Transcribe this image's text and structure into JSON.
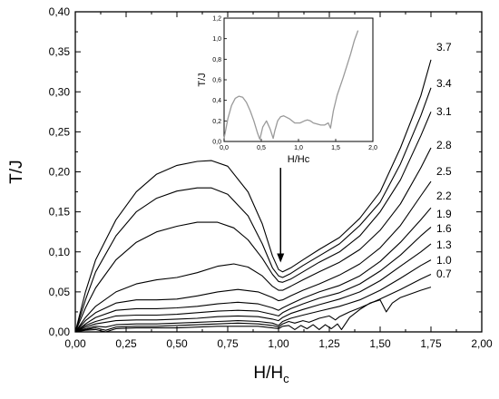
{
  "chart_data": [
    {
      "type": "line",
      "role": "main",
      "xlabel": "H/H",
      "xlabel_sub": "c",
      "ylabel": "T/J",
      "xlim": [
        0,
        2.0
      ],
      "ylim": [
        0,
        0.4
      ],
      "x_ticks": [
        "0,00",
        "0,25",
        "0,50",
        "0,75",
        "1,00",
        "1,25",
        "1,50",
        "1,75",
        "2,00"
      ],
      "y_ticks": [
        "0,00",
        "0,05",
        "0,10",
        "0,15",
        "0,20",
        "0,25",
        "0,30",
        "0,35",
        "0,40"
      ],
      "grid": false,
      "annotation": "downward arrow pointing at the minimum near H/Hc = 1",
      "series": [
        {
          "name": "3.7",
          "x": [
            0,
            0.05,
            0.1,
            0.2,
            0.3,
            0.4,
            0.5,
            0.6,
            0.67,
            0.75,
            0.85,
            0.92,
            0.97,
            1.0,
            1.02,
            1.06,
            1.12,
            1.2,
            1.3,
            1.4,
            1.5,
            1.6,
            1.7,
            1.75
          ],
          "y": [
            0,
            0.05,
            0.09,
            0.14,
            0.175,
            0.197,
            0.208,
            0.213,
            0.214,
            0.207,
            0.175,
            0.135,
            0.095,
            0.078,
            0.075,
            0.08,
            0.09,
            0.103,
            0.118,
            0.142,
            0.175,
            0.23,
            0.295,
            0.34
          ]
        },
        {
          "name": "3.4",
          "x": [
            0,
            0.05,
            0.1,
            0.2,
            0.3,
            0.4,
            0.5,
            0.6,
            0.67,
            0.75,
            0.85,
            0.92,
            0.97,
            1.0,
            1.02,
            1.06,
            1.12,
            1.2,
            1.3,
            1.4,
            1.5,
            1.6,
            1.7,
            1.75
          ],
          "y": [
            0,
            0.04,
            0.075,
            0.12,
            0.15,
            0.167,
            0.176,
            0.18,
            0.18,
            0.172,
            0.145,
            0.11,
            0.08,
            0.07,
            0.068,
            0.073,
            0.083,
            0.095,
            0.11,
            0.133,
            0.162,
            0.21,
            0.27,
            0.305
          ]
        },
        {
          "name": "3.1",
          "x": [
            0,
            0.05,
            0.1,
            0.2,
            0.3,
            0.4,
            0.5,
            0.6,
            0.7,
            0.78,
            0.85,
            0.92,
            0.97,
            1.0,
            1.02,
            1.06,
            1.12,
            1.2,
            1.3,
            1.4,
            1.5,
            1.6,
            1.7,
            1.75
          ],
          "y": [
            0,
            0.03,
            0.055,
            0.09,
            0.112,
            0.125,
            0.132,
            0.137,
            0.137,
            0.13,
            0.115,
            0.092,
            0.072,
            0.063,
            0.062,
            0.066,
            0.075,
            0.087,
            0.1,
            0.12,
            0.15,
            0.19,
            0.245,
            0.275
          ]
        },
        {
          "name": "2.8",
          "x": [
            0,
            0.05,
            0.1,
            0.2,
            0.3,
            0.4,
            0.5,
            0.6,
            0.7,
            0.78,
            0.85,
            0.92,
            0.97,
            1.0,
            1.02,
            1.06,
            1.12,
            1.2,
            1.3,
            1.4,
            1.5,
            1.6,
            1.7,
            1.75
          ],
          "y": [
            0,
            0.018,
            0.032,
            0.05,
            0.06,
            0.065,
            0.068,
            0.074,
            0.082,
            0.085,
            0.081,
            0.07,
            0.057,
            0.052,
            0.052,
            0.057,
            0.065,
            0.075,
            0.087,
            0.103,
            0.127,
            0.16,
            0.205,
            0.23
          ]
        },
        {
          "name": "2.5",
          "x": [
            0,
            0.05,
            0.1,
            0.2,
            0.3,
            0.4,
            0.5,
            0.6,
            0.7,
            0.8,
            0.9,
            0.97,
            1.0,
            1.02,
            1.06,
            1.12,
            1.2,
            1.3,
            1.4,
            1.5,
            1.6,
            1.7,
            1.75
          ],
          "y": [
            0,
            0.014,
            0.024,
            0.036,
            0.04,
            0.04,
            0.041,
            0.045,
            0.05,
            0.053,
            0.05,
            0.043,
            0.039,
            0.04,
            0.045,
            0.052,
            0.06,
            0.071,
            0.085,
            0.105,
            0.133,
            0.17,
            0.188
          ]
        },
        {
          "name": "2.2",
          "x": [
            0,
            0.05,
            0.1,
            0.2,
            0.3,
            0.4,
            0.5,
            0.6,
            0.7,
            0.8,
            0.9,
            0.97,
            1.0,
            1.02,
            1.06,
            1.12,
            1.2,
            1.3,
            1.4,
            1.5,
            1.6,
            1.7,
            1.75
          ],
          "y": [
            0,
            0.01,
            0.018,
            0.027,
            0.029,
            0.029,
            0.03,
            0.032,
            0.035,
            0.037,
            0.035,
            0.03,
            0.027,
            0.03,
            0.035,
            0.042,
            0.05,
            0.058,
            0.07,
            0.088,
            0.112,
            0.14,
            0.155
          ]
        },
        {
          "name": "1.9",
          "x": [
            0,
            0.05,
            0.1,
            0.2,
            0.3,
            0.4,
            0.5,
            0.6,
            0.7,
            0.8,
            0.9,
            0.97,
            1.0,
            1.02,
            1.06,
            1.12,
            1.2,
            1.3,
            1.4,
            1.5,
            1.6,
            1.7,
            1.75
          ],
          "y": [
            0,
            0.008,
            0.013,
            0.02,
            0.021,
            0.021,
            0.022,
            0.024,
            0.026,
            0.027,
            0.026,
            0.022,
            0.02,
            0.024,
            0.029,
            0.035,
            0.042,
            0.049,
            0.06,
            0.076,
            0.096,
            0.12,
            0.131
          ]
        },
        {
          "name": "1.6",
          "x": [
            0,
            0.05,
            0.1,
            0.2,
            0.3,
            0.4,
            0.5,
            0.6,
            0.7,
            0.8,
            0.9,
            0.97,
            1.0,
            1.02,
            1.06,
            1.12,
            1.2,
            1.3,
            1.4,
            1.5,
            1.6,
            1.7,
            1.75
          ],
          "y": [
            0,
            0.006,
            0.01,
            0.014,
            0.015,
            0.015,
            0.016,
            0.017,
            0.019,
            0.02,
            0.019,
            0.016,
            0.014,
            0.018,
            0.023,
            0.028,
            0.034,
            0.041,
            0.05,
            0.064,
            0.082,
            0.1,
            0.11
          ]
        },
        {
          "name": "1.3",
          "x": [
            0,
            0.05,
            0.1,
            0.15,
            0.2,
            0.3,
            0.4,
            0.5,
            0.6,
            0.7,
            0.8,
            0.9,
            0.97,
            1.0,
            1.02,
            1.06,
            1.12,
            1.2,
            1.3,
            1.4,
            1.5,
            1.6,
            1.7,
            1.75
          ],
          "y": [
            0,
            0.004,
            0.007,
            0.006,
            0.009,
            0.01,
            0.01,
            0.011,
            0.012,
            0.013,
            0.014,
            0.013,
            0.011,
            0.008,
            0.013,
            0.017,
            0.021,
            0.026,
            0.032,
            0.04,
            0.052,
            0.067,
            0.083,
            0.09
          ]
        },
        {
          "name": "1.0",
          "x": [
            0,
            0.05,
            0.1,
            0.15,
            0.2,
            0.3,
            0.4,
            0.5,
            0.6,
            0.7,
            0.8,
            0.9,
            0.97,
            1.0,
            1.02,
            1.05,
            1.08,
            1.12,
            1.15,
            1.2,
            1.25,
            1.28,
            1.3,
            1.35,
            1.4,
            1.5,
            1.6,
            1.7,
            1.75
          ],
          "y": [
            0,
            0.003,
            0.005,
            0.002,
            0.006,
            0.007,
            0.007,
            0.008,
            0.009,
            0.01,
            0.011,
            0.01,
            0.008,
            0.006,
            0.01,
            0.013,
            0.011,
            0.014,
            0.012,
            0.017,
            0.02,
            0.015,
            0.019,
            0.025,
            0.03,
            0.041,
            0.053,
            0.066,
            0.072
          ]
        },
        {
          "name": "0.7",
          "x": [
            0,
            0.05,
            0.1,
            0.15,
            0.2,
            0.3,
            0.4,
            0.5,
            0.6,
            0.7,
            0.8,
            0.9,
            0.97,
            1.0,
            1.02,
            1.05,
            1.08,
            1.11,
            1.14,
            1.17,
            1.2,
            1.23,
            1.26,
            1.29,
            1.31,
            1.35,
            1.4,
            1.45,
            1.5,
            1.53,
            1.56,
            1.6,
            1.7,
            1.75
          ],
          "y": [
            0,
            0.002,
            0.003,
            0.0,
            0.004,
            0.005,
            0.005,
            0.005,
            0.006,
            0.007,
            0.007,
            0.007,
            0.005,
            0.004,
            0.007,
            0.008,
            0.003,
            0.008,
            0.004,
            0.009,
            0.003,
            0.009,
            0.004,
            0.01,
            0.003,
            0.018,
            0.028,
            0.036,
            0.04,
            0.025,
            0.036,
            0.043,
            0.052,
            0.056
          ]
        }
      ]
    },
    {
      "type": "line",
      "role": "inset",
      "xlabel": "H/Hc",
      "ylabel": "T/J",
      "xlim": [
        0,
        2.0
      ],
      "ylim": [
        0,
        1.2
      ],
      "x_ticks": [
        "0,0",
        "0,5",
        "1,0",
        "1,5",
        "2,0"
      ],
      "y_ticks": [
        "0,0",
        "0,2",
        "0,4",
        "0,6",
        "0,8",
        "1,0",
        "1,2"
      ],
      "series": [
        {
          "x": [
            0,
            0.05,
            0.1,
            0.15,
            0.2,
            0.25,
            0.3,
            0.35,
            0.4,
            0.45,
            0.48,
            0.52,
            0.57,
            0.62,
            0.66,
            0.68,
            0.72,
            0.76,
            0.8,
            0.88,
            0.95,
            1.02,
            1.08,
            1.12,
            1.16,
            1.2,
            1.25,
            1.3,
            1.35,
            1.4,
            1.43,
            1.47,
            1.52,
            1.6,
            1.7,
            1.75,
            1.8
          ],
          "y": [
            0.03,
            0.22,
            0.35,
            0.42,
            0.44,
            0.43,
            0.38,
            0.3,
            0.2,
            0.08,
            0.02,
            0.14,
            0.2,
            0.12,
            0.03,
            0.1,
            0.2,
            0.24,
            0.25,
            0.22,
            0.18,
            0.18,
            0.2,
            0.21,
            0.2,
            0.18,
            0.17,
            0.16,
            0.16,
            0.18,
            0.13,
            0.3,
            0.45,
            0.62,
            0.85,
            0.98,
            1.08
          ]
        }
      ]
    }
  ]
}
